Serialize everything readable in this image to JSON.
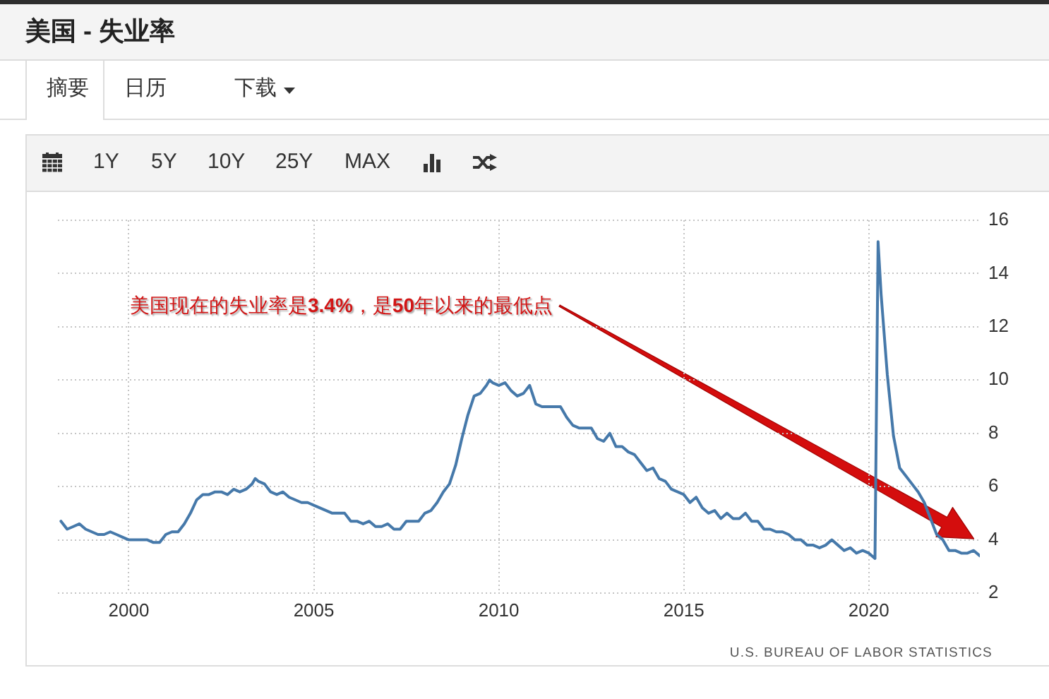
{
  "chart_data": {
    "type": "line",
    "title": "美国 - 失业率",
    "x": [
      "1998-03",
      "1998-05",
      "1998-07",
      "1998-09",
      "1998-11",
      "1999-01",
      "1999-03",
      "1999-05",
      "1999-07",
      "1999-09",
      "1999-11",
      "2000-01",
      "2000-03",
      "2000-05",
      "2000-07",
      "2000-09",
      "2000-11",
      "2001-01",
      "2001-03",
      "2001-05",
      "2001-07",
      "2001-09",
      "2001-11",
      "2002-01",
      "2002-03",
      "2002-05",
      "2002-07",
      "2002-09",
      "2002-11",
      "2003-01",
      "2003-03",
      "2003-05",
      "2003-06",
      "2003-07",
      "2003-09",
      "2003-11",
      "2004-01",
      "2004-03",
      "2004-05",
      "2004-07",
      "2004-09",
      "2004-11",
      "2005-01",
      "2005-03",
      "2005-05",
      "2005-07",
      "2005-09",
      "2005-11",
      "2006-01",
      "2006-03",
      "2006-05",
      "2006-07",
      "2006-09",
      "2006-11",
      "2007-01",
      "2007-03",
      "2007-05",
      "2007-07",
      "2007-09",
      "2007-11",
      "2008-01",
      "2008-03",
      "2008-05",
      "2008-07",
      "2008-09",
      "2008-11",
      "2009-01",
      "2009-03",
      "2009-05",
      "2009-07",
      "2009-09",
      "2009-10",
      "2009-11",
      "2010-01",
      "2010-03",
      "2010-05",
      "2010-07",
      "2010-09",
      "2010-11",
      "2011-01",
      "2011-03",
      "2011-05",
      "2011-07",
      "2011-09",
      "2011-11",
      "2012-01",
      "2012-03",
      "2012-05",
      "2012-07",
      "2012-09",
      "2012-11",
      "2013-01",
      "2013-03",
      "2013-05",
      "2013-07",
      "2013-09",
      "2013-11",
      "2014-01",
      "2014-03",
      "2014-05",
      "2014-07",
      "2014-09",
      "2014-11",
      "2015-01",
      "2015-03",
      "2015-05",
      "2015-07",
      "2015-09",
      "2015-11",
      "2016-01",
      "2016-03",
      "2016-05",
      "2016-07",
      "2016-09",
      "2016-11",
      "2017-01",
      "2017-03",
      "2017-05",
      "2017-07",
      "2017-09",
      "2017-11",
      "2018-01",
      "2018-03",
      "2018-05",
      "2018-07",
      "2018-09",
      "2018-11",
      "2019-01",
      "2019-03",
      "2019-05",
      "2019-07",
      "2019-09",
      "2019-11",
      "2020-01",
      "2020-03",
      "2020-04",
      "2020-05",
      "2020-07",
      "2020-09",
      "2020-11",
      "2021-01",
      "2021-03",
      "2021-05",
      "2021-07",
      "2021-09",
      "2021-11",
      "2022-01",
      "2022-03",
      "2022-05",
      "2022-07",
      "2022-09",
      "2022-11",
      "2023-01"
    ],
    "values": [
      4.7,
      4.4,
      4.5,
      4.6,
      4.4,
      4.3,
      4.2,
      4.2,
      4.3,
      4.2,
      4.1,
      4.0,
      4.0,
      4.0,
      4.0,
      3.9,
      3.9,
      4.2,
      4.3,
      4.3,
      4.6,
      5.0,
      5.5,
      5.7,
      5.7,
      5.8,
      5.8,
      5.7,
      5.9,
      5.8,
      5.9,
      6.1,
      6.3,
      6.2,
      6.1,
      5.8,
      5.7,
      5.8,
      5.6,
      5.5,
      5.4,
      5.4,
      5.3,
      5.2,
      5.1,
      5.0,
      5.0,
      5.0,
      4.7,
      4.7,
      4.6,
      4.7,
      4.5,
      4.5,
      4.6,
      4.4,
      4.4,
      4.7,
      4.7,
      4.7,
      5.0,
      5.1,
      5.4,
      5.8,
      6.1,
      6.8,
      7.8,
      8.7,
      9.4,
      9.5,
      9.8,
      10.0,
      9.9,
      9.8,
      9.9,
      9.6,
      9.4,
      9.5,
      9.8,
      9.1,
      9.0,
      9.0,
      9.0,
      9.0,
      8.6,
      8.3,
      8.2,
      8.2,
      8.2,
      7.8,
      7.7,
      8.0,
      7.5,
      7.5,
      7.3,
      7.2,
      6.9,
      6.6,
      6.7,
      6.3,
      6.2,
      5.9,
      5.8,
      5.7,
      5.4,
      5.6,
      5.2,
      5.0,
      5.1,
      4.8,
      5.0,
      4.8,
      4.8,
      5.0,
      4.7,
      4.7,
      4.4,
      4.4,
      4.3,
      4.3,
      4.2,
      4.0,
      4.0,
      3.8,
      3.8,
      3.7,
      3.8,
      4.0,
      3.8,
      3.6,
      3.7,
      3.5,
      3.6,
      3.5,
      3.3,
      15.2,
      13.2,
      10.2,
      7.9,
      6.7,
      6.4,
      6.1,
      5.8,
      5.4,
      4.8,
      4.2,
      4.0,
      3.6,
      3.6,
      3.5,
      3.5,
      3.6,
      3.4
    ],
    "color": "#4679aa",
    "xlim": [
      "1998-02",
      "2023-01"
    ],
    "xticks": [
      "2000",
      "2005",
      "2010",
      "2015",
      "2020"
    ],
    "ylim": [
      2,
      16
    ],
    "yticks": [
      2,
      4,
      6,
      8,
      10,
      12,
      14,
      16
    ],
    "grid": true,
    "marker": "none",
    "line_style": "solid",
    "annotations": [
      "摘要",
      "日历",
      "下载",
      "1Y",
      "5Y",
      "10Y",
      "25Y",
      "MAX",
      "美国现在的失业率是3.4%，是50年以来的最低点",
      "U.S. BUREAU OF LABOR STATISTICS"
    ]
  }
}
